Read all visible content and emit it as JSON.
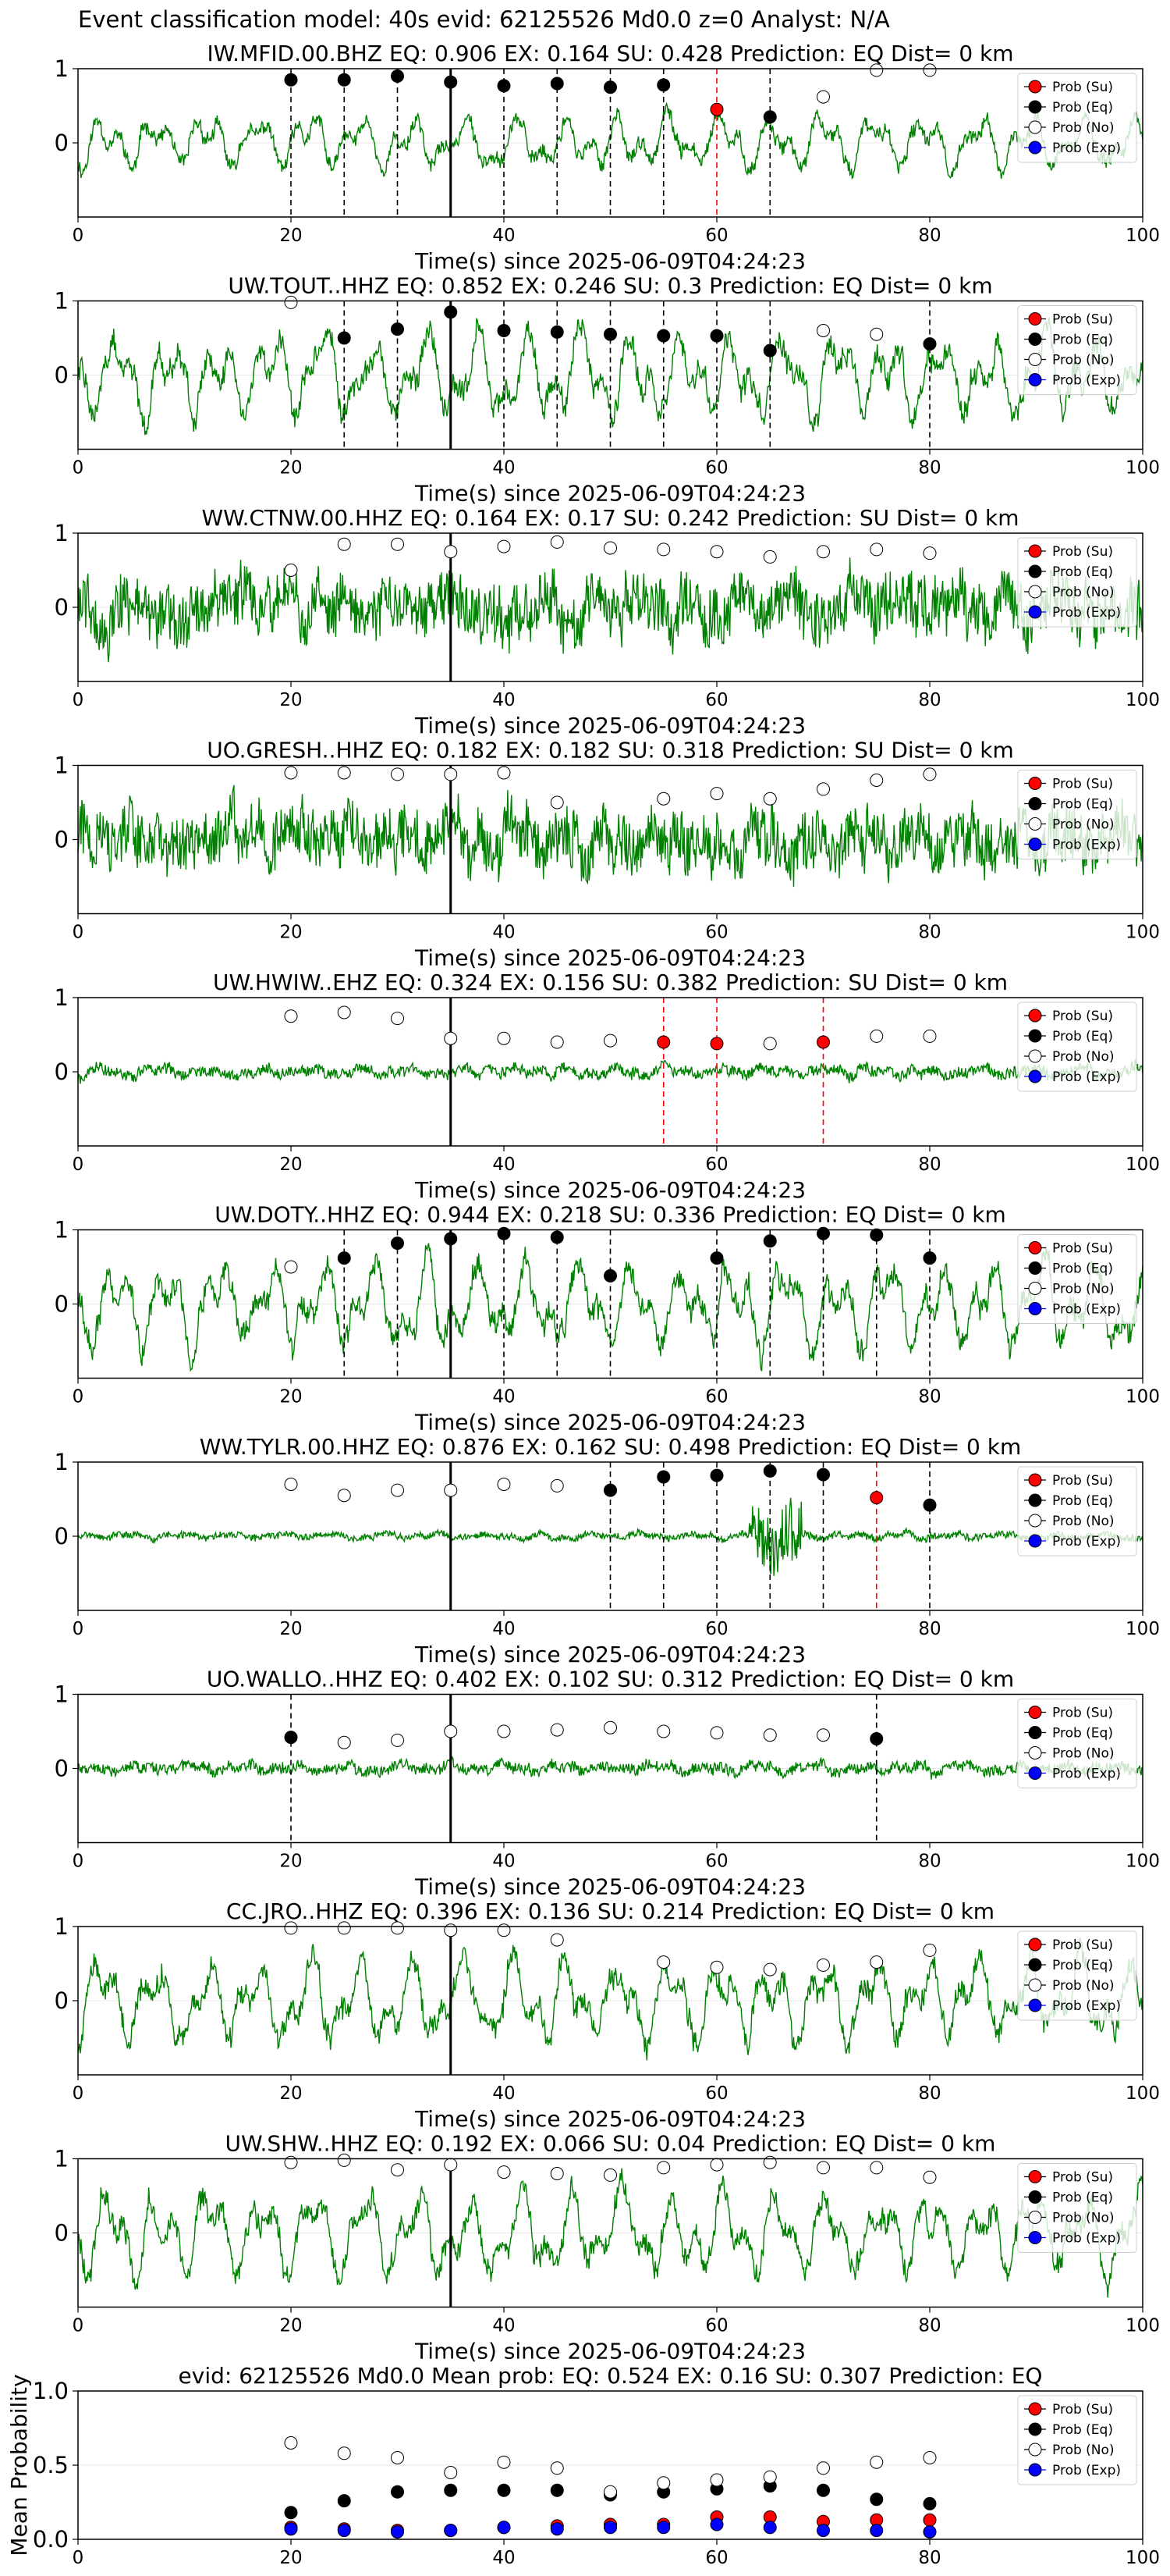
{
  "figure": {
    "suptitle": "Event classification model: 40s evid: 62125526 Md0.0 z=0 Analyst: N/A"
  },
  "colors": {
    "waveform": "#008000",
    "su": "#ff0000",
    "eq": "#000000",
    "no": "#ffffff",
    "exp": "#0000ff",
    "eq_line": "#000000",
    "su_line": "#ff0000",
    "arrival_line": "#000000"
  },
  "legend_labels": [
    "Prob (Su)",
    "Prob (Eq)",
    "Prob (No)",
    "Prob (Exp)"
  ],
  "chart_data": [
    {
      "type": "line",
      "title": "IW.MFID.00.BHZ    EQ: 0.906   EX: 0.164   SU: 0.428    Prediction: EQ    Dist= 0 km",
      "xlabel": "Time(s) since 2025-06-09T04:24:23",
      "ylabel": "",
      "xlim": [
        0,
        100
      ],
      "ylim": [
        -1,
        1
      ],
      "xticks": [
        0,
        20,
        40,
        60,
        80,
        100
      ],
      "yticks": [
        0,
        1
      ],
      "legend": "top-right",
      "arrival_time": 35,
      "amplitude_class": "mixed",
      "seed": 11,
      "series": [
        {
          "name": "Prob (Eq)",
          "x": [
            20,
            25,
            30,
            35,
            40,
            45,
            50,
            55,
            65
          ],
          "y": [
            0.85,
            0.85,
            0.9,
            0.82,
            0.77,
            0.8,
            0.75,
            0.78,
            0.35
          ]
        },
        {
          "name": "Prob (Su)",
          "x": [
            60
          ],
          "y": [
            0.45
          ]
        },
        {
          "name": "Prob (No)",
          "x": [
            70,
            75,
            80
          ],
          "y": [
            0.62,
            0.98,
            0.98
          ]
        }
      ],
      "eq_lines": [
        20,
        25,
        30,
        40,
        45,
        50,
        55,
        65
      ],
      "su_lines": [
        60
      ]
    },
    {
      "type": "line",
      "title": "UW.TOUT..HHZ   EQ: 0.852  EX: 0.246  SU: 0.3   Prediction: EQ    Dist= 0 km",
      "xlabel": "Time(s) since 2025-06-09T04:24:23",
      "ylabel": "",
      "xlim": [
        0,
        100
      ],
      "ylim": [
        -1,
        1
      ],
      "xticks": [
        0,
        20,
        40,
        60,
        80,
        100
      ],
      "yticks": [
        0,
        1
      ],
      "legend": "top-right",
      "arrival_time": 35,
      "amplitude_class": "large",
      "seed": 22,
      "series": [
        {
          "name": "Prob (Eq)",
          "x": [
            25,
            30,
            35,
            40,
            45,
            50,
            55,
            60,
            65,
            80
          ],
          "y": [
            0.5,
            0.62,
            0.85,
            0.6,
            0.58,
            0.55,
            0.53,
            0.53,
            0.33,
            0.42
          ]
        },
        {
          "name": "Prob (No)",
          "x": [
            20,
            70,
            75
          ],
          "y": [
            0.98,
            0.6,
            0.55
          ]
        }
      ],
      "eq_lines": [
        25,
        30,
        40,
        45,
        50,
        55,
        60,
        65,
        80
      ],
      "su_lines": []
    },
    {
      "type": "line",
      "title": "WW.CTNW.00.HHZ   EQ: 0.164  EX: 0.17  SU: 0.242   Prediction: SU    Dist= 0 km",
      "xlabel": "Time(s) since 2025-06-09T04:24:23",
      "ylabel": "",
      "xlim": [
        0,
        100
      ],
      "ylim": [
        -1,
        1
      ],
      "xticks": [
        0,
        20,
        40,
        60,
        80,
        100
      ],
      "yticks": [
        0,
        1
      ],
      "legend": "top-right",
      "arrival_time": 35,
      "amplitude_class": "noisy",
      "seed": 33,
      "series": [
        {
          "name": "Prob (No)",
          "x": [
            20,
            25,
            30,
            35,
            40,
            45,
            50,
            55,
            60,
            65,
            70,
            75,
            80
          ],
          "y": [
            0.5,
            0.85,
            0.85,
            0.75,
            0.82,
            0.88,
            0.8,
            0.78,
            0.75,
            0.68,
            0.75,
            0.78,
            0.73
          ]
        }
      ],
      "eq_lines": [],
      "su_lines": []
    },
    {
      "type": "line",
      "title": "UO.GRESH..HHZ   EQ: 0.182  EX: 0.182  SU: 0.318   Prediction: SU    Dist= 0 km",
      "xlabel": "Time(s) since 2025-06-09T04:24:23",
      "ylabel": "",
      "xlim": [
        0,
        100
      ],
      "ylim": [
        -1,
        1
      ],
      "xticks": [
        0,
        20,
        40,
        60,
        80,
        100
      ],
      "yticks": [
        0,
        1
      ],
      "legend": "top-right",
      "arrival_time": 35,
      "amplitude_class": "noisy",
      "seed": 44,
      "series": [
        {
          "name": "Prob (No)",
          "x": [
            20,
            25,
            30,
            35,
            40,
            45,
            55,
            60,
            65,
            70,
            75,
            80
          ],
          "y": [
            0.9,
            0.9,
            0.88,
            0.88,
            0.9,
            0.5,
            0.55,
            0.62,
            0.55,
            0.68,
            0.8,
            0.88
          ]
        }
      ],
      "eq_lines": [],
      "su_lines": []
    },
    {
      "type": "line",
      "title": "UW.HWIW..EHZ   EQ: 0.324  EX: 0.156  SU: 0.382   Prediction: SU    Dist= 0 km",
      "xlabel": "Time(s) since 2025-06-09T04:24:23",
      "ylabel": "",
      "xlim": [
        0,
        100
      ],
      "ylim": [
        -1,
        1
      ],
      "xticks": [
        0,
        20,
        40,
        60,
        80,
        100
      ],
      "yticks": [
        0,
        1
      ],
      "legend": "top-right",
      "arrival_time": 35,
      "amplitude_class": "small",
      "seed": 55,
      "series": [
        {
          "name": "Prob (Su)",
          "x": [
            55,
            60,
            70
          ],
          "y": [
            0.4,
            0.38,
            0.4
          ]
        },
        {
          "name": "Prob (No)",
          "x": [
            20,
            25,
            30,
            35,
            40,
            45,
            50,
            65,
            75,
            80
          ],
          "y": [
            0.75,
            0.8,
            0.72,
            0.45,
            0.45,
            0.4,
            0.42,
            0.38,
            0.48,
            0.48
          ]
        }
      ],
      "eq_lines": [],
      "su_lines": [
        55,
        60,
        70
      ]
    },
    {
      "type": "line",
      "title": "UW.DOTY..HHZ   EQ: 0.944  EX: 0.218  SU: 0.336   Prediction: EQ    Dist= 0 km",
      "xlabel": "Time(s) since 2025-06-09T04:24:23",
      "ylabel": "",
      "xlim": [
        0,
        100
      ],
      "ylim": [
        -1,
        1
      ],
      "xticks": [
        0,
        20,
        40,
        60,
        80,
        100
      ],
      "yticks": [
        0,
        1
      ],
      "legend": "top-right",
      "arrival_time": 35,
      "amplitude_class": "large",
      "seed": 66,
      "series": [
        {
          "name": "Prob (Eq)",
          "x": [
            25,
            30,
            35,
            40,
            45,
            50,
            60,
            65,
            70,
            75,
            80
          ],
          "y": [
            0.62,
            0.82,
            0.88,
            0.95,
            0.9,
            0.38,
            0.62,
            0.85,
            0.95,
            0.93,
            0.62
          ]
        },
        {
          "name": "Prob (No)",
          "x": [
            20
          ],
          "y": [
            0.5
          ]
        }
      ],
      "eq_lines": [
        25,
        30,
        40,
        45,
        50,
        60,
        65,
        70,
        75,
        80
      ],
      "su_lines": []
    },
    {
      "type": "line",
      "title": "WW.TYLR.00.HHZ   EQ: 0.876  EX: 0.162  SU: 0.498   Prediction: EQ    Dist= 0 km",
      "xlabel": "Time(s) since 2025-06-09T04:24:23",
      "ylabel": "",
      "xlim": [
        0,
        100
      ],
      "ylim": [
        -1,
        1
      ],
      "xticks": [
        0,
        20,
        40,
        60,
        80,
        100
      ],
      "yticks": [
        0,
        1
      ],
      "legend": "top-right",
      "arrival_time": 35,
      "amplitude_class": "quiet",
      "seed": 77,
      "series": [
        {
          "name": "Prob (Eq)",
          "x": [
            50,
            55,
            60,
            65,
            70,
            80
          ],
          "y": [
            0.62,
            0.8,
            0.82,
            0.88,
            0.83,
            0.42
          ]
        },
        {
          "name": "Prob (Su)",
          "x": [
            75
          ],
          "y": [
            0.52
          ]
        },
        {
          "name": "Prob (No)",
          "x": [
            20,
            25,
            30,
            35,
            40,
            45
          ],
          "y": [
            0.7,
            0.55,
            0.62,
            0.62,
            0.7,
            0.68
          ]
        }
      ],
      "eq_lines": [
        50,
        55,
        60,
        65,
        70,
        80
      ],
      "su_lines": [
        75
      ]
    },
    {
      "type": "line",
      "title": "UO.WALLO..HHZ   EQ: 0.402  EX: 0.102  SU: 0.312   Prediction: EQ    Dist= 0 km",
      "xlabel": "Time(s) since 2025-06-09T04:24:23",
      "ylabel": "",
      "xlim": [
        0,
        100
      ],
      "ylim": [
        -1,
        1
      ],
      "xticks": [
        0,
        20,
        40,
        60,
        80,
        100
      ],
      "yticks": [
        0,
        1
      ],
      "legend": "top-right",
      "arrival_time": 35,
      "amplitude_class": "small",
      "seed": 88,
      "series": [
        {
          "name": "Prob (Eq)",
          "x": [
            20,
            75
          ],
          "y": [
            0.42,
            0.4
          ]
        },
        {
          "name": "Prob (No)",
          "x": [
            25,
            30,
            35,
            40,
            45,
            50,
            55,
            60,
            65,
            70
          ],
          "y": [
            0.35,
            0.38,
            0.5,
            0.5,
            0.52,
            0.55,
            0.5,
            0.48,
            0.45,
            0.45
          ]
        }
      ],
      "eq_lines": [
        20,
        75
      ],
      "su_lines": []
    },
    {
      "type": "line",
      "title": "CC.JRO..HHZ   EQ: 0.396  EX: 0.136  SU: 0.214   Prediction: EQ    Dist= 0 km",
      "xlabel": "Time(s) since 2025-06-09T04:24:23",
      "ylabel": "",
      "xlim": [
        0,
        100
      ],
      "ylim": [
        -1,
        1
      ],
      "xticks": [
        0,
        20,
        40,
        60,
        80,
        100
      ],
      "yticks": [
        0,
        1
      ],
      "legend": "top-right",
      "arrival_time": 35,
      "amplitude_class": "large",
      "seed": 99,
      "series": [
        {
          "name": "Prob (No)",
          "x": [
            20,
            25,
            30,
            35,
            40,
            45,
            55,
            60,
            65,
            70,
            75,
            80
          ],
          "y": [
            0.98,
            0.98,
            0.98,
            0.95,
            0.95,
            0.82,
            0.52,
            0.45,
            0.42,
            0.48,
            0.52,
            0.68
          ]
        }
      ],
      "eq_lines": [],
      "su_lines": []
    },
    {
      "type": "line",
      "title": "UW.SHW..HHZ   EQ: 0.192  EX: 0.066  SU: 0.04   Prediction: EQ    Dist= 0 km",
      "xlabel": "Time(s) since 2025-06-09T04:24:23",
      "ylabel": "",
      "xlim": [
        0,
        100
      ],
      "ylim": [
        -1,
        1
      ],
      "xticks": [
        0,
        20,
        40,
        60,
        80,
        100
      ],
      "yticks": [
        0,
        1
      ],
      "legend": "top-right",
      "arrival_time": 35,
      "amplitude_class": "large",
      "seed": 111,
      "series": [
        {
          "name": "Prob (No)",
          "x": [
            20,
            25,
            30,
            35,
            40,
            45,
            50,
            55,
            60,
            65,
            70,
            75,
            80
          ],
          "y": [
            0.95,
            0.98,
            0.85,
            0.92,
            0.82,
            0.8,
            0.78,
            0.88,
            0.92,
            0.95,
            0.88,
            0.88,
            0.75
          ]
        }
      ],
      "eq_lines": [],
      "su_lines": []
    },
    {
      "type": "scatter",
      "title": "evid: 62125526  Md0.0    Mean prob:    EQ: 0.524  EX: 0.16  SU: 0.307   Prediction: EQ",
      "xlabel": "",
      "ylabel": "Mean Probability",
      "xlim": [
        0,
        100
      ],
      "ylim": [
        0,
        1
      ],
      "xticks": [
        0,
        20,
        40,
        60,
        80,
        100
      ],
      "yticks": [
        0.0,
        0.5,
        1.0
      ],
      "ytick_labels": [
        "0.0",
        "0.5",
        "1.0"
      ],
      "legend": "top-right",
      "series": [
        {
          "name": "Prob (Su)",
          "x": [
            20,
            25,
            30,
            35,
            40,
            45,
            50,
            55,
            60,
            65,
            70,
            75,
            80
          ],
          "y": [
            0.08,
            0.07,
            0.06,
            0.06,
            0.08,
            0.09,
            0.1,
            0.1,
            0.15,
            0.15,
            0.12,
            0.13,
            0.13
          ]
        },
        {
          "name": "Prob (Eq)",
          "x": [
            20,
            25,
            30,
            35,
            40,
            45,
            50,
            55,
            60,
            65,
            70,
            75,
            80
          ],
          "y": [
            0.18,
            0.26,
            0.32,
            0.33,
            0.33,
            0.33,
            0.3,
            0.32,
            0.34,
            0.36,
            0.33,
            0.27,
            0.24
          ]
        },
        {
          "name": "Prob (No)",
          "x": [
            20,
            25,
            30,
            35,
            40,
            45,
            50,
            55,
            60,
            65,
            70,
            75,
            80
          ],
          "y": [
            0.65,
            0.58,
            0.55,
            0.45,
            0.52,
            0.48,
            0.32,
            0.38,
            0.4,
            0.42,
            0.48,
            0.52,
            0.55
          ]
        },
        {
          "name": "Prob (Exp)",
          "x": [
            20,
            25,
            30,
            35,
            40,
            45,
            50,
            55,
            60,
            65,
            70,
            75,
            80
          ],
          "y": [
            0.07,
            0.06,
            0.05,
            0.06,
            0.08,
            0.07,
            0.08,
            0.08,
            0.1,
            0.08,
            0.06,
            0.06,
            0.05
          ]
        }
      ]
    }
  ]
}
